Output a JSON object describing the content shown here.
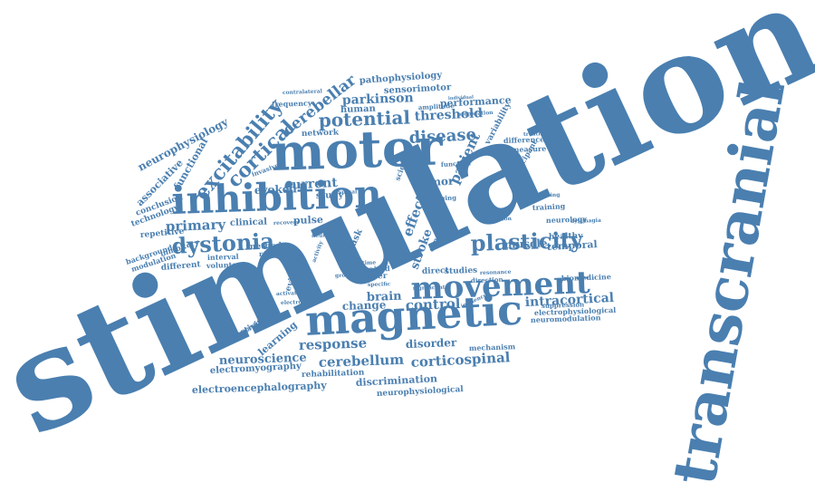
{
  "colors": {
    "word": "#4a7fb0",
    "background": "#ffffff"
  },
  "words": [
    {
      "text": "stimulation"
    },
    {
      "text": "transcranial"
    },
    {
      "text": "motor"
    },
    {
      "text": "magnetic"
    },
    {
      "text": "inhibition"
    },
    {
      "text": "movement"
    },
    {
      "text": "plasticity"
    },
    {
      "text": "dystonia"
    },
    {
      "text": "excitability"
    },
    {
      "text": "cortical"
    },
    {
      "text": "potential"
    },
    {
      "text": "disease"
    },
    {
      "text": "parkinson"
    },
    {
      "text": "cerebellar"
    },
    {
      "text": "neurophysiology"
    },
    {
      "text": "associative"
    },
    {
      "text": "functional"
    },
    {
      "text": "primary"
    },
    {
      "text": "repetitive"
    },
    {
      "text": "current"
    },
    {
      "text": "evoked"
    },
    {
      "text": "tremor"
    },
    {
      "text": "threshold"
    },
    {
      "text": "performance"
    },
    {
      "text": "pathophysiology"
    },
    {
      "text": "sensorimotor"
    },
    {
      "text": "human"
    },
    {
      "text": "frequency"
    },
    {
      "text": "network"
    },
    {
      "text": "amplitude"
    },
    {
      "text": "effect"
    },
    {
      "text": "patient"
    },
    {
      "text": "variability"
    },
    {
      "text": "difference"
    },
    {
      "text": "measure"
    },
    {
      "text": "treatment"
    },
    {
      "text": "participant"
    },
    {
      "text": "training"
    },
    {
      "text": "neurology"
    },
    {
      "text": "healthy"
    },
    {
      "text": "temporal"
    },
    {
      "text": "muscle"
    },
    {
      "text": "stroke"
    },
    {
      "text": "sensory"
    },
    {
      "text": "task"
    },
    {
      "text": "clinical"
    },
    {
      "text": "pulse"
    },
    {
      "text": "study"
    },
    {
      "text": "method"
    },
    {
      "text": "result"
    },
    {
      "text": "interval"
    },
    {
      "text": "voluntary"
    },
    {
      "text": "different"
    },
    {
      "text": "background"
    },
    {
      "text": "modulation"
    },
    {
      "text": "inhibitory"
    },
    {
      "text": "technology"
    },
    {
      "text": "conclusion"
    },
    {
      "text": "upper"
    },
    {
      "text": "direct"
    },
    {
      "text": "studies"
    },
    {
      "text": "paired"
    },
    {
      "text": "brain"
    },
    {
      "text": "change"
    },
    {
      "text": "control"
    },
    {
      "text": "intracortical"
    },
    {
      "text": "biomedicine"
    },
    {
      "text": "suppression"
    },
    {
      "text": "electrophysiological"
    },
    {
      "text": "neuromodulation"
    },
    {
      "text": "response"
    },
    {
      "text": "disorder"
    },
    {
      "text": "mechanism"
    },
    {
      "text": "cerebellum"
    },
    {
      "text": "corticospinal"
    },
    {
      "text": "neuroscience"
    },
    {
      "text": "learning"
    },
    {
      "text": "connectivity"
    },
    {
      "text": "electromyography"
    },
    {
      "text": "rehabilitation"
    },
    {
      "text": "discrimination"
    },
    {
      "text": "neurophysiological"
    },
    {
      "text": "electroencephalography"
    },
    {
      "text": "invasive"
    },
    {
      "text": "activation"
    },
    {
      "text": "science"
    },
    {
      "text": "imaging"
    },
    {
      "text": "function"
    },
    {
      "text": "evidence"
    },
    {
      "text": "dysphagia"
    },
    {
      "text": "duration"
    },
    {
      "text": "direction"
    },
    {
      "text": "resonance"
    },
    {
      "text": "significant"
    },
    {
      "text": "specific"
    },
    {
      "text": "preparation"
    },
    {
      "text": "individual"
    },
    {
      "text": "contralateral"
    },
    {
      "text": "processing"
    },
    {
      "text": "electrode"
    },
    {
      "text": "peripheral"
    },
    {
      "text": "time"
    },
    {
      "text": "group"
    },
    {
      "text": "neural"
    },
    {
      "text": "spinal"
    },
    {
      "text": "activity"
    },
    {
      "text": "recovery"
    },
    {
      "text": "influence"
    }
  ]
}
